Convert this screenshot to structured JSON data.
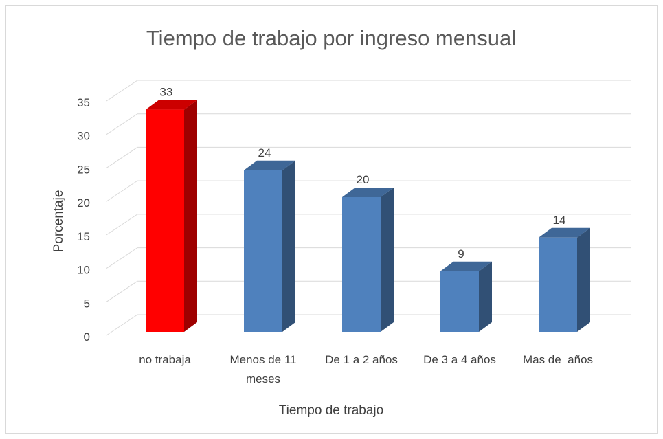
{
  "chart_data": {
    "type": "bar3d",
    "title": "Tiempo de trabajo por ingreso mensual",
    "xlabel": "Tiempo de trabajo",
    "ylabel": "Porcentaje",
    "categories": [
      "no trabaja",
      "Menos de 11 meses",
      "De 1 a 2 años",
      "De 3 a 4 años",
      "Mas de  años"
    ],
    "values": [
      33,
      24,
      20,
      9,
      14
    ],
    "colors": [
      "#ff0000",
      "#4f81bd",
      "#4f81bd",
      "#4f81bd",
      "#4f81bd"
    ],
    "ylim": [
      0,
      35
    ],
    "yticks": [
      0,
      5,
      10,
      15,
      20,
      25,
      30,
      35
    ],
    "grid": true
  }
}
